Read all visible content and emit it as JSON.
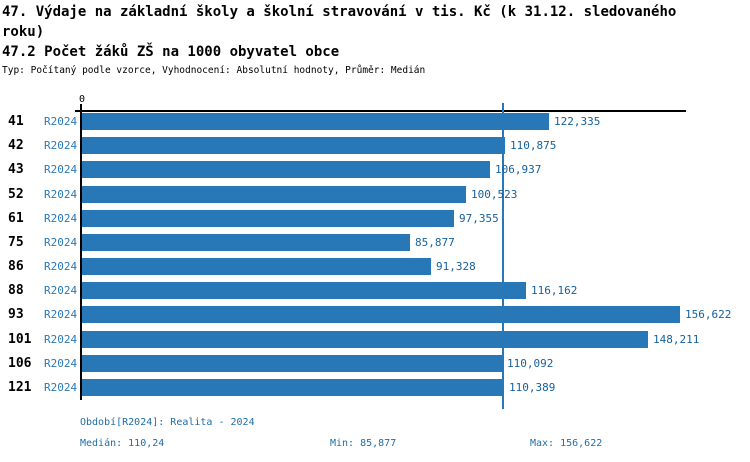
{
  "title": "47. Výdaje na základní školy a školní stravování v tis. Kč (k 31.12. sledovaného roku)",
  "title2": "47.2 Počet žáků ZŠ na 1000 obyvatel obce",
  "subtitle": "Typ: Počítaný podle vzorce, Vyhodnocení: Absolutní hodnoty, Průměr: Medián",
  "axis": {
    "zero_label": "0"
  },
  "chart_data": {
    "type": "bar",
    "orientation": "horizontal",
    "categories": [
      "41",
      "42",
      "43",
      "52",
      "61",
      "75",
      "86",
      "88",
      "93",
      "101",
      "106",
      "121"
    ],
    "series": [
      {
        "name": "R2024",
        "values": [
          122.335,
          110.875,
          106.937,
          100.523,
          97.355,
          85.877,
          91.328,
          116.162,
          156.622,
          148.211,
          110.092,
          110.389
        ]
      }
    ],
    "value_labels": [
      "122,335",
      "110,875",
      "106,937",
      "100,523",
      "97,355",
      "85,877",
      "91,328",
      "116,162",
      "156,622",
      "148,211",
      "110,092",
      "110,389"
    ],
    "xlim": [
      0,
      158.4
    ],
    "median_value": 110.24,
    "grid": false,
    "legend_position": "none",
    "bar_color": "#2878b8",
    "value_label_color": "#17609c",
    "median_line_color": "#2878b8",
    "series_label_color": "#2878b8"
  },
  "footer": {
    "period": "Období[R2024]: Realita - 2024",
    "median": "Medián: 110,24",
    "min": "Min: 85,877",
    "max": "Max: 156,622"
  }
}
